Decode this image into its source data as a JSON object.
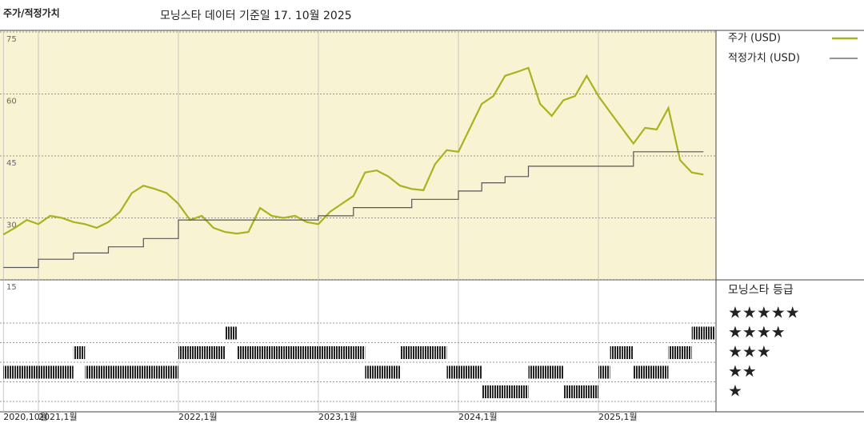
{
  "chart_data": [
    {
      "type": "line",
      "title": "주가/적정가치",
      "subtitle": "모닝스타 데이터 기준일 17. 10월 2025",
      "x": [
        "2020-10",
        "2020-11",
        "2020-12",
        "2021-01",
        "2021-02",
        "2021-03",
        "2021-04",
        "2021-05",
        "2021-06",
        "2021-07",
        "2021-08",
        "2021-09",
        "2021-10",
        "2021-11",
        "2021-12",
        "2022-01",
        "2022-02",
        "2022-03",
        "2022-04",
        "2022-05",
        "2022-06",
        "2022-07",
        "2022-08",
        "2022-09",
        "2022-10",
        "2022-11",
        "2022-12",
        "2023-01",
        "2023-02",
        "2023-03",
        "2023-04",
        "2023-05",
        "2023-06",
        "2023-07",
        "2023-08",
        "2023-09",
        "2023-10",
        "2023-11",
        "2023-12",
        "2024-01",
        "2024-02",
        "2024-03",
        "2024-04",
        "2024-05",
        "2024-06",
        "2024-07",
        "2024-08",
        "2024-09",
        "2024-10",
        "2024-11",
        "2024-12",
        "2025-01",
        "2025-02",
        "2025-03",
        "2025-04",
        "2025-05",
        "2025-06",
        "2025-07",
        "2025-08",
        "2025-09",
        "2025-10"
      ],
      "series": [
        {
          "name": "주가 (USD)",
          "color": "#a9b21f",
          "values": [
            26,
            27.6,
            29.5,
            28.5,
            30.5,
            30,
            29,
            28.5,
            27.6,
            29,
            31.5,
            36,
            37.8,
            37,
            36,
            33.4,
            29.5,
            30.5,
            27.6,
            26.6,
            26.2,
            26.6,
            32.4,
            30.5,
            30,
            30.5,
            29,
            28.5,
            31.5,
            33.4,
            35.3,
            41,
            41.5,
            40,
            37.8,
            37,
            36.7,
            43,
            46.4,
            46,
            51.8,
            57.6,
            59.5,
            64.4,
            65.3,
            66.3,
            57.6,
            54.7,
            58.5,
            59.5,
            64.4,
            59.5,
            55.6,
            51.8,
            48,
            51.8,
            51.4,
            56.6,
            44,
            41,
            40.5
          ]
        },
        {
          "name": "적정가치 (USD)",
          "color": "#555555",
          "values": [
            18,
            18,
            18,
            20,
            20,
            20,
            21.5,
            21.5,
            21.5,
            23,
            23,
            23,
            25,
            25,
            25,
            29.5,
            29.5,
            29.5,
            29.5,
            29.5,
            29.5,
            29.5,
            29.5,
            29.5,
            29.5,
            29.5,
            29.5,
            30.5,
            30.5,
            30.5,
            32.5,
            32.5,
            32.5,
            32.5,
            32.5,
            34.5,
            34.5,
            34.5,
            34.5,
            36.5,
            36.5,
            38.5,
            38.5,
            40,
            40,
            42.5,
            42.5,
            42.5,
            42.5,
            42.5,
            42.5,
            42.5,
            42.5,
            42.5,
            46,
            46,
            46,
            46,
            46,
            46,
            46
          ]
        }
      ],
      "ylim": [
        15,
        75
      ],
      "yticks": [
        15,
        30,
        45,
        60,
        75
      ],
      "xticks": [
        {
          "value": "2020-10",
          "label": "2020,10월"
        },
        {
          "value": "2021-01",
          "label": "2021,1월"
        },
        {
          "value": "2022-01",
          "label": "2022,1월"
        },
        {
          "value": "2023-01",
          "label": "2023,1월"
        },
        {
          "value": "2024-01",
          "label": "2024,1월"
        },
        {
          "value": "2025-01",
          "label": "2025,1월"
        }
      ],
      "grid": true
    },
    {
      "type": "rating",
      "title": "모닝스타 등급",
      "levels": [
        {
          "value": 5,
          "label": "★★★★★"
        },
        {
          "value": 4,
          "label": "★★★★"
        },
        {
          "value": 3,
          "label": "★★★"
        },
        {
          "value": 2,
          "label": "★★"
        },
        {
          "value": 1,
          "label": "★"
        }
      ],
      "x": [
        "2020-10",
        "2020-11",
        "2020-12",
        "2021-01",
        "2021-02",
        "2021-03",
        "2021-04",
        "2021-05",
        "2021-06",
        "2021-07",
        "2021-08",
        "2021-09",
        "2021-10",
        "2021-11",
        "2021-12",
        "2022-01",
        "2022-02",
        "2022-03",
        "2022-04",
        "2022-05",
        "2022-06",
        "2022-07",
        "2022-08",
        "2022-09",
        "2022-10",
        "2022-11",
        "2022-12",
        "2023-01",
        "2023-02",
        "2023-03",
        "2023-04",
        "2023-05",
        "2023-06",
        "2023-07",
        "2023-08",
        "2023-09",
        "2023-10",
        "2023-11",
        "2023-12",
        "2024-01",
        "2024-02",
        "2024-03",
        "2024-04",
        "2024-05",
        "2024-06",
        "2024-07",
        "2024-08",
        "2024-09",
        "2024-10",
        "2024-11",
        "2024-12",
        "2025-01",
        "2025-02",
        "2025-03",
        "2025-04",
        "2025-05",
        "2025-06",
        "2025-07",
        "2025-08",
        "2025-09",
        "2025-10"
      ],
      "values": [
        2,
        2,
        2,
        2,
        2,
        2,
        3,
        2,
        2,
        2,
        2,
        2,
        2,
        2,
        2,
        3,
        3,
        3,
        3,
        4,
        3,
        3,
        3,
        3,
        3,
        3,
        3,
        3,
        3,
        3,
        3,
        2,
        2,
        2,
        3,
        3,
        3,
        3,
        2,
        2,
        2,
        1,
        1,
        1,
        1,
        2,
        2,
        2,
        1,
        1,
        1,
        2,
        3,
        3,
        2,
        2,
        2,
        3,
        3,
        4,
        4
      ],
      "color": "#222222"
    }
  ]
}
